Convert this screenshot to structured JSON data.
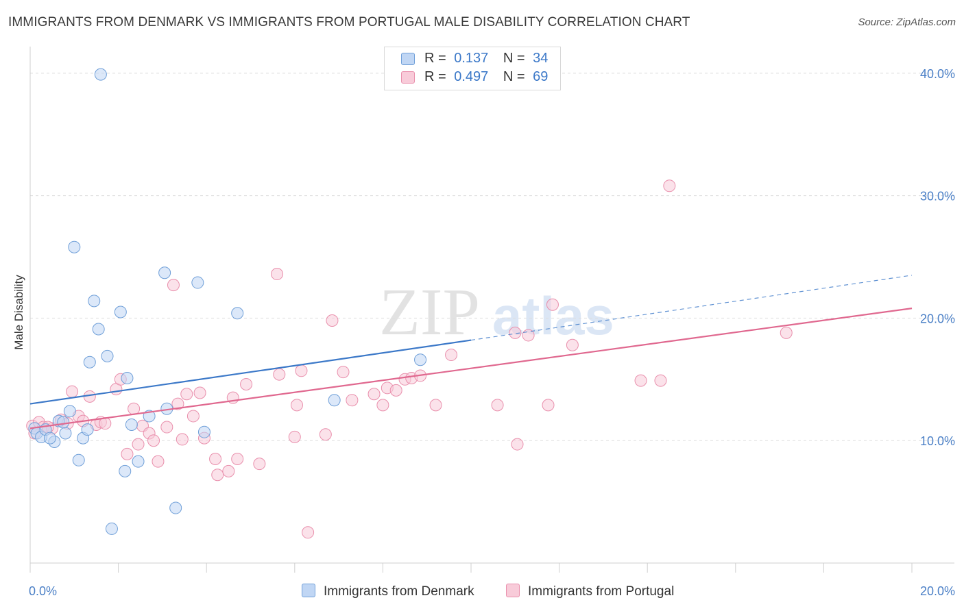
{
  "title": "IMMIGRANTS FROM DENMARK VS IMMIGRANTS FROM PORTUGAL MALE DISABILITY CORRELATION CHART",
  "source": "Source: ZipAtlas.com",
  "watermark": {
    "zip": "ZIP",
    "atlas": "atlas"
  },
  "colors": {
    "denmark_fill": "#c0d6f4",
    "denmark_stroke": "#6f9fd8",
    "denmark_line": "#3b78c8",
    "portugal_fill": "#f8cbd9",
    "portugal_stroke": "#e98fac",
    "portugal_line": "#e0688f",
    "axis_text": "#4a7fc6",
    "grid": "#dddddd"
  },
  "legend_top": [
    {
      "r_label": "R =",
      "r_value": "0.137",
      "n_label": "N =",
      "n_value": "34"
    },
    {
      "r_label": "R =",
      "r_value": "0.497",
      "n_label": "N =",
      "n_value": "69"
    }
  ],
  "chart_data": {
    "type": "scatter",
    "title": "IMMIGRANTS FROM DENMARK VS IMMIGRANTS FROM PORTUGAL MALE DISABILITY CORRELATION CHART",
    "xlabel": "",
    "ylabel": "Male Disability",
    "xlim": [
      0,
      20
    ],
    "ylim": [
      0,
      41.5
    ],
    "x_tick_labels": [
      "0.0%",
      "20.0%"
    ],
    "y_ticks": [
      10,
      20,
      30,
      40
    ],
    "y_tick_labels": [
      "10.0%",
      "20.0%",
      "30.0%",
      "40.0%"
    ],
    "grid": true,
    "legend_position": "bottom-center",
    "series": [
      {
        "name": "Immigrants from Denmark",
        "points": [
          [
            0.1,
            11.0
          ],
          [
            0.15,
            10.6
          ],
          [
            0.25,
            10.3
          ],
          [
            0.35,
            10.9
          ],
          [
            0.55,
            9.9
          ],
          [
            0.65,
            11.6
          ],
          [
            0.8,
            10.6
          ],
          [
            0.9,
            12.4
          ],
          [
            1.0,
            25.8
          ],
          [
            1.1,
            8.4
          ],
          [
            1.2,
            10.2
          ],
          [
            1.3,
            10.9
          ],
          [
            1.35,
            16.4
          ],
          [
            1.45,
            21.4
          ],
          [
            1.55,
            19.1
          ],
          [
            1.6,
            39.9
          ],
          [
            1.75,
            16.9
          ],
          [
            1.85,
            2.8
          ],
          [
            2.05,
            20.5
          ],
          [
            2.15,
            7.5
          ],
          [
            2.2,
            15.1
          ],
          [
            2.3,
            11.3
          ],
          [
            2.45,
            8.3
          ],
          [
            2.7,
            12.0
          ],
          [
            3.05,
            23.7
          ],
          [
            3.1,
            12.6
          ],
          [
            3.3,
            4.5
          ],
          [
            3.8,
            22.9
          ],
          [
            3.95,
            10.7
          ],
          [
            4.7,
            20.4
          ],
          [
            6.9,
            13.3
          ],
          [
            8.85,
            16.6
          ],
          [
            0.45,
            10.2
          ],
          [
            0.75,
            11.5
          ]
        ],
        "trend": {
          "x": [
            0,
            10
          ],
          "y": [
            13.0,
            18.2
          ],
          "dashed_to": [
            20,
            23.5
          ]
        }
      },
      {
        "name": "Immigrants from Portugal",
        "points": [
          [
            0.05,
            11.2
          ],
          [
            0.1,
            10.6
          ],
          [
            0.2,
            11.5
          ],
          [
            0.3,
            11.1
          ],
          [
            0.5,
            11.0
          ],
          [
            0.7,
            11.7
          ],
          [
            0.85,
            11.4
          ],
          [
            0.95,
            14.0
          ],
          [
            1.1,
            12.0
          ],
          [
            1.2,
            11.6
          ],
          [
            1.35,
            13.6
          ],
          [
            1.5,
            11.3
          ],
          [
            1.6,
            11.5
          ],
          [
            1.7,
            11.4
          ],
          [
            1.95,
            14.2
          ],
          [
            2.05,
            15.0
          ],
          [
            2.2,
            8.9
          ],
          [
            2.35,
            12.6
          ],
          [
            2.45,
            9.7
          ],
          [
            2.55,
            11.2
          ],
          [
            2.7,
            10.6
          ],
          [
            2.8,
            10.0
          ],
          [
            2.9,
            8.3
          ],
          [
            3.1,
            11.1
          ],
          [
            3.25,
            22.7
          ],
          [
            3.35,
            13.0
          ],
          [
            3.45,
            10.1
          ],
          [
            3.55,
            13.8
          ],
          [
            3.7,
            12.0
          ],
          [
            3.85,
            13.9
          ],
          [
            3.95,
            10.2
          ],
          [
            4.2,
            8.5
          ],
          [
            4.25,
            7.2
          ],
          [
            4.5,
            7.5
          ],
          [
            4.6,
            13.5
          ],
          [
            4.7,
            8.5
          ],
          [
            4.9,
            14.6
          ],
          [
            5.2,
            8.1
          ],
          [
            5.6,
            23.6
          ],
          [
            5.65,
            15.4
          ],
          [
            6.05,
            12.9
          ],
          [
            6.0,
            10.3
          ],
          [
            6.15,
            15.7
          ],
          [
            6.3,
            2.5
          ],
          [
            6.7,
            10.5
          ],
          [
            6.85,
            19.8
          ],
          [
            7.1,
            15.6
          ],
          [
            7.3,
            13.3
          ],
          [
            7.8,
            13.8
          ],
          [
            8.0,
            12.9
          ],
          [
            8.1,
            14.3
          ],
          [
            8.3,
            14.1
          ],
          [
            8.5,
            15.0
          ],
          [
            8.65,
            15.1
          ],
          [
            8.85,
            15.3
          ],
          [
            9.2,
            12.9
          ],
          [
            9.55,
            17.0
          ],
          [
            10.6,
            12.9
          ],
          [
            11.0,
            18.8
          ],
          [
            11.05,
            9.7
          ],
          [
            11.3,
            18.6
          ],
          [
            11.75,
            12.9
          ],
          [
            11.85,
            21.1
          ],
          [
            12.3,
            17.8
          ],
          [
            13.85,
            14.9
          ],
          [
            14.3,
            14.9
          ],
          [
            14.5,
            30.8
          ],
          [
            17.15,
            18.8
          ],
          [
            0.4,
            11.1
          ]
        ],
        "trend": {
          "x": [
            0,
            20
          ],
          "y": [
            11.0,
            20.8
          ]
        }
      }
    ]
  }
}
